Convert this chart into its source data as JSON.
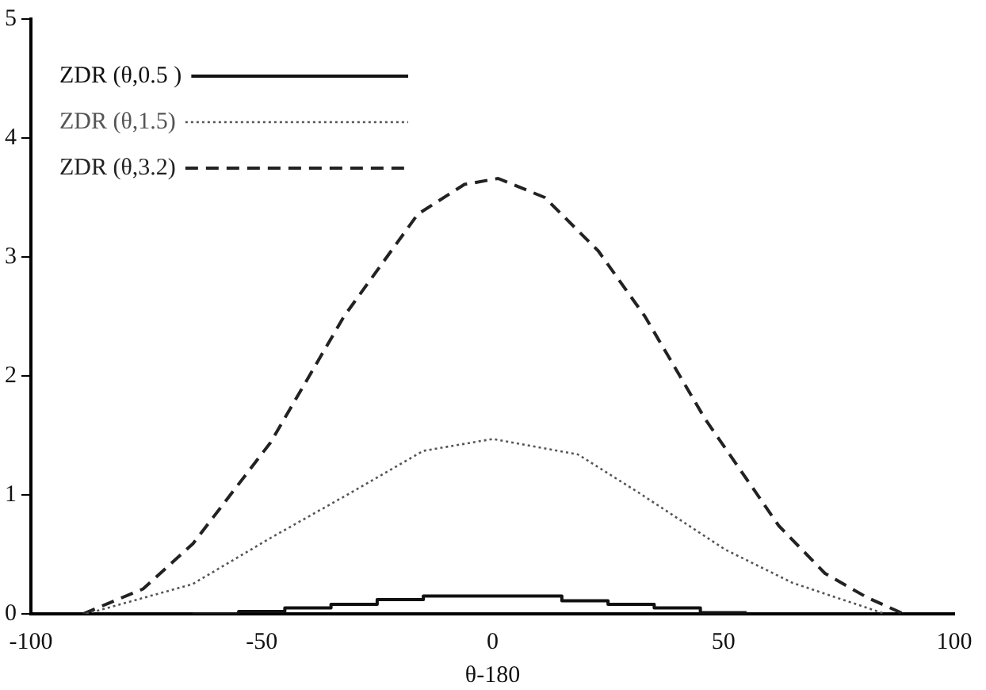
{
  "chart_data": {
    "type": "line",
    "xlabel": "θ-180",
    "xlim": [
      -100,
      100
    ],
    "xticks": [
      -100,
      -50,
      0,
      50,
      100
    ],
    "ylim": [
      0,
      5
    ],
    "yticks": [
      0,
      1,
      2,
      3,
      4,
      5
    ],
    "grid": false,
    "legend": "top left",
    "marker": "none",
    "series": [
      {
        "name": "ZDR (θ,0.5 )",
        "type": "step",
        "color": "#111111",
        "line_style": "solid",
        "x": [
          -65,
          -55,
          -45,
          -35,
          -25,
          -15,
          15,
          25,
          35,
          45,
          55
        ],
        "values": [
          0,
          0.02,
          0.05,
          0.08,
          0.12,
          0.15,
          0.11,
          0.08,
          0.05,
          0.01,
          0.01
        ]
      },
      {
        "name": "ZDR (θ,1.5)",
        "type": "line",
        "color": "#555555",
        "line_style": "dotted",
        "x": [
          -88,
          -65,
          -48,
          -32,
          -15,
          0,
          18.5,
          31.6,
          50.4,
          65,
          85
        ],
        "values": [
          0,
          0.25,
          0.64,
          0.99,
          1.37,
          1.47,
          1.34,
          1.02,
          0.54,
          0.26,
          0
        ]
      },
      {
        "name": "ZDR (θ,3.2)",
        "type": "line",
        "color": "#222222",
        "line_style": "dashed",
        "x": [
          -88.7,
          -75.7,
          -64.9,
          -48.1,
          -32.2,
          -16.2,
          -6.1,
          1.2,
          11.3,
          22.9,
          33,
          46,
          62,
          72,
          81,
          89
        ],
        "values": [
          0,
          0.21,
          0.59,
          1.44,
          2.5,
          3.36,
          3.61,
          3.66,
          3.5,
          3.05,
          2.5,
          1.64,
          0.74,
          0.34,
          0.14,
          0
        ]
      }
    ]
  }
}
